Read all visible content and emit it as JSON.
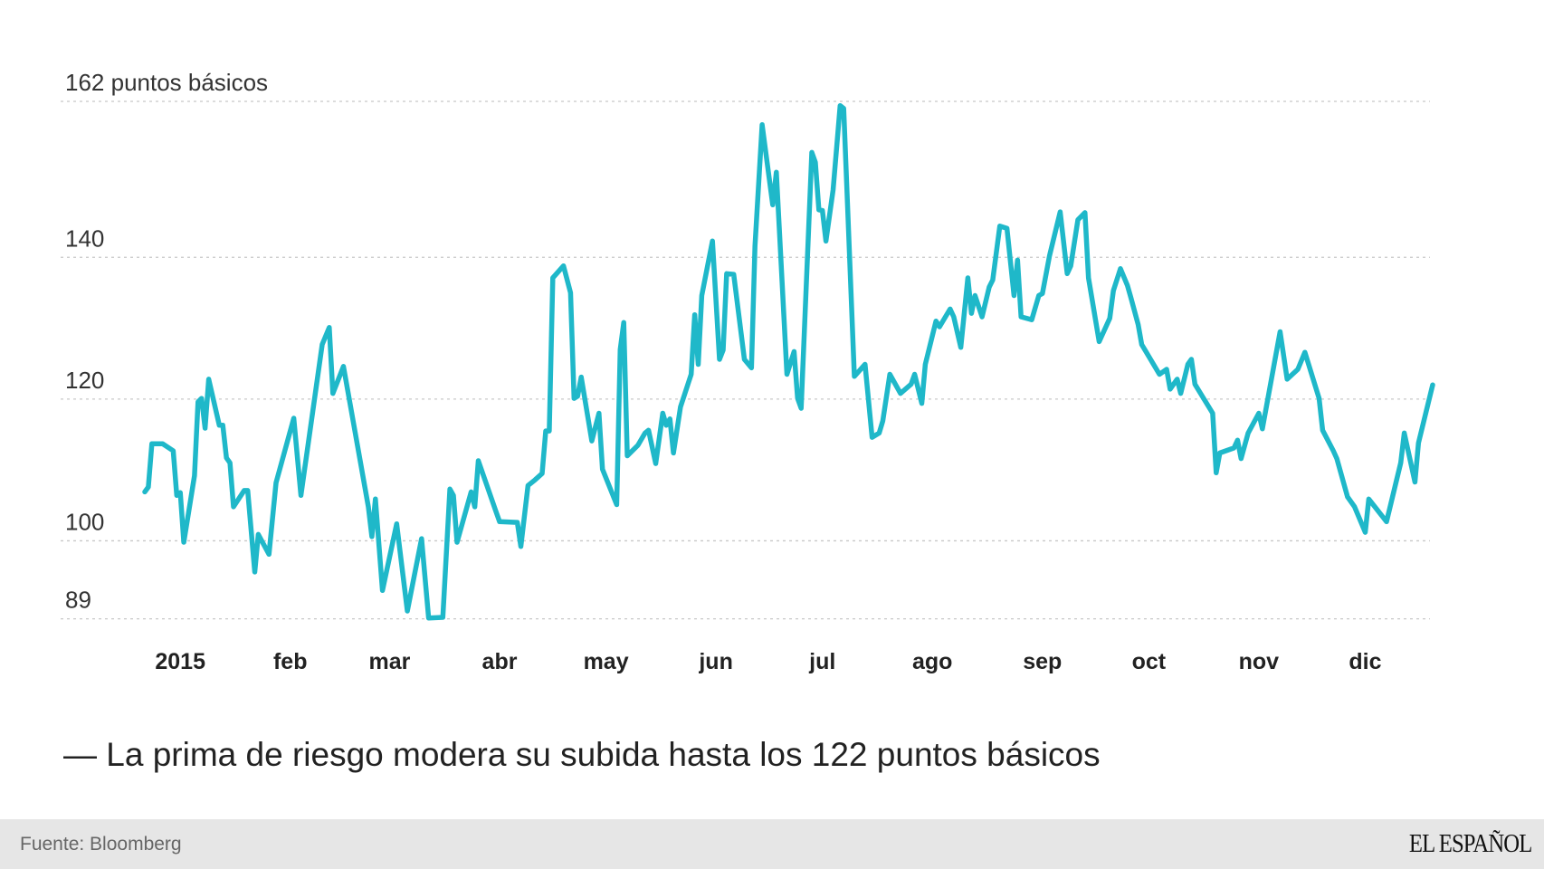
{
  "chart_data": {
    "type": "line",
    "title": "La prima de riesgo modera su subida hasta los 122 puntos básicos",
    "title_prefix": "—",
    "ylabel_unit": "puntos básicos",
    "ylim": [
      89,
      162
    ],
    "yticks": [
      162,
      140,
      120,
      100,
      89
    ],
    "ytick_labels": [
      "162 puntos básicos",
      "140",
      "120",
      "100",
      "89"
    ],
    "xlim": [
      "2015-01-01",
      "2015-12-31"
    ],
    "xtick_labels": [
      "2015",
      "feb",
      "mar",
      "abr",
      "may",
      "jun",
      "jul",
      "ago",
      "sep",
      "oct",
      "nov",
      "dic"
    ],
    "grid": "horizontal dotted",
    "line_color": "#1fb8c9",
    "series": [
      {
        "points": [
          [
            "2015-01-02",
            106.9
          ],
          [
            "2015-01-03",
            107.6
          ],
          [
            "2015-01-04",
            113.7
          ],
          [
            "2015-01-07",
            113.7
          ],
          [
            "2015-01-10",
            112.7
          ],
          [
            "2015-01-11",
            106.4
          ],
          [
            "2015-01-12",
            106.8
          ],
          [
            "2015-01-13",
            99.8
          ],
          [
            "2015-01-16",
            109.2
          ],
          [
            "2015-01-17",
            119.6
          ],
          [
            "2015-01-18",
            120.1
          ],
          [
            "2015-01-19",
            115.9
          ],
          [
            "2015-01-20",
            122.8
          ],
          [
            "2015-01-23",
            116.3
          ],
          [
            "2015-01-24",
            116.3
          ],
          [
            "2015-01-25",
            111.7
          ],
          [
            "2015-01-26",
            111.0
          ],
          [
            "2015-01-27",
            104.8
          ],
          [
            "2015-01-30",
            107.1
          ],
          [
            "2015-01-31",
            107.1
          ],
          [
            "2015-02-02",
            95.6
          ],
          [
            "2015-02-03",
            100.9
          ],
          [
            "2015-02-06",
            98.1
          ],
          [
            "2015-02-08",
            108.2
          ],
          [
            "2015-02-13",
            117.3
          ],
          [
            "2015-02-15",
            106.4
          ],
          [
            "2015-02-21",
            127.7
          ],
          [
            "2015-02-23",
            130.1
          ],
          [
            "2015-02-24",
            120.8
          ],
          [
            "2015-02-27",
            124.6
          ],
          [
            "2015-03-06",
            104.8
          ],
          [
            "2015-03-07",
            100.6
          ],
          [
            "2015-03-08",
            105.9
          ],
          [
            "2015-03-10",
            93.0
          ],
          [
            "2015-03-14",
            102.4
          ],
          [
            "2015-03-17",
            90.1
          ],
          [
            "2015-03-21",
            100.3
          ],
          [
            "2015-03-23",
            89.1
          ],
          [
            "2015-03-27",
            89.2
          ],
          [
            "2015-03-29",
            107.3
          ],
          [
            "2015-03-30",
            106.4
          ],
          [
            "2015-03-31",
            99.8
          ],
          [
            "2015-04-04",
            106.9
          ],
          [
            "2015-04-05",
            104.8
          ],
          [
            "2015-04-06",
            111.3
          ],
          [
            "2015-04-11",
            104.1
          ],
          [
            "2015-04-12",
            102.7
          ],
          [
            "2015-04-17",
            102.6
          ],
          [
            "2015-04-18",
            99.2
          ],
          [
            "2015-04-20",
            107.8
          ],
          [
            "2015-04-22",
            108.6
          ],
          [
            "2015-04-24",
            109.5
          ],
          [
            "2015-04-25",
            115.5
          ],
          [
            "2015-04-26",
            115.5
          ],
          [
            "2015-04-27",
            137.1
          ],
          [
            "2015-04-30",
            138.8
          ],
          [
            "2015-05-02",
            135.0
          ],
          [
            "2015-05-03",
            120.1
          ],
          [
            "2015-05-04",
            120.4
          ],
          [
            "2015-05-05",
            123.1
          ],
          [
            "2015-05-08",
            114.1
          ],
          [
            "2015-05-10",
            118.0
          ],
          [
            "2015-05-11",
            110.1
          ],
          [
            "2015-05-15",
            105.1
          ],
          [
            "2015-05-16",
            127.0
          ],
          [
            "2015-05-17",
            130.8
          ],
          [
            "2015-05-18",
            112.0
          ],
          [
            "2015-05-21",
            113.5
          ],
          [
            "2015-05-23",
            115.2
          ],
          [
            "2015-05-24",
            115.6
          ],
          [
            "2015-05-26",
            110.9
          ],
          [
            "2015-05-28",
            118.0
          ],
          [
            "2015-05-29",
            116.3
          ],
          [
            "2015-05-30",
            117.2
          ],
          [
            "2015-05-31",
            112.4
          ],
          [
            "2015-06-02",
            118.9
          ],
          [
            "2015-06-05",
            123.5
          ],
          [
            "2015-06-06",
            131.9
          ],
          [
            "2015-06-07",
            124.9
          ],
          [
            "2015-06-08",
            134.6
          ],
          [
            "2015-06-11",
            142.3
          ],
          [
            "2015-06-13",
            125.6
          ],
          [
            "2015-06-14",
            126.9
          ],
          [
            "2015-06-15",
            137.7
          ],
          [
            "2015-06-17",
            137.6
          ],
          [
            "2015-06-20",
            125.6
          ],
          [
            "2015-06-22",
            124.4
          ],
          [
            "2015-06-23",
            141.6
          ],
          [
            "2015-06-25",
            158.7
          ],
          [
            "2015-06-28",
            147.4
          ],
          [
            "2015-06-29",
            152.0
          ],
          [
            "2015-07-02",
            123.5
          ],
          [
            "2015-07-04",
            126.7
          ],
          [
            "2015-07-05",
            120.1
          ],
          [
            "2015-07-06",
            118.7
          ],
          [
            "2015-07-09",
            154.8
          ],
          [
            "2015-07-10",
            153.4
          ],
          [
            "2015-07-11",
            146.7
          ],
          [
            "2015-07-12",
            146.6
          ],
          [
            "2015-07-13",
            142.3
          ],
          [
            "2015-07-15",
            149.5
          ],
          [
            "2015-07-17",
            161.4
          ],
          [
            "2015-07-18",
            161.0
          ],
          [
            "2015-07-21",
            123.2
          ],
          [
            "2015-07-24",
            124.9
          ],
          [
            "2015-07-26",
            114.6
          ],
          [
            "2015-07-28",
            115.2
          ],
          [
            "2015-07-29",
            116.9
          ],
          [
            "2015-07-31",
            123.5
          ],
          [
            "2015-08-03",
            120.8
          ],
          [
            "2015-08-06",
            122.1
          ],
          [
            "2015-08-07",
            123.5
          ],
          [
            "2015-08-09",
            119.4
          ],
          [
            "2015-08-10",
            124.9
          ],
          [
            "2015-08-13",
            131.0
          ],
          [
            "2015-08-14",
            130.2
          ],
          [
            "2015-08-17",
            132.7
          ],
          [
            "2015-08-18",
            131.6
          ],
          [
            "2015-08-20",
            127.3
          ],
          [
            "2015-08-22",
            137.1
          ],
          [
            "2015-08-23",
            132.1
          ],
          [
            "2015-08-24",
            134.6
          ],
          [
            "2015-08-26",
            131.6
          ],
          [
            "2015-08-28",
            135.8
          ],
          [
            "2015-08-29",
            136.8
          ],
          [
            "2015-08-31",
            144.4
          ],
          [
            "2015-09-02",
            144.1
          ],
          [
            "2015-09-04",
            134.6
          ],
          [
            "2015-09-05",
            139.6
          ],
          [
            "2015-09-06",
            131.6
          ],
          [
            "2015-09-09",
            131.2
          ],
          [
            "2015-09-11",
            134.6
          ],
          [
            "2015-09-12",
            134.9
          ],
          [
            "2015-09-14",
            140.2
          ],
          [
            "2015-09-17",
            146.4
          ],
          [
            "2015-09-19",
            137.7
          ],
          [
            "2015-09-20",
            138.8
          ],
          [
            "2015-09-22",
            145.3
          ],
          [
            "2015-09-24",
            146.3
          ],
          [
            "2015-09-25",
            137.1
          ],
          [
            "2015-09-28",
            128.1
          ],
          [
            "2015-10-01",
            131.4
          ],
          [
            "2015-10-02",
            135.3
          ],
          [
            "2015-10-04",
            138.4
          ],
          [
            "2015-10-06",
            136.0
          ],
          [
            "2015-10-07",
            134.2
          ],
          [
            "2015-10-09",
            130.5
          ],
          [
            "2015-10-10",
            127.7
          ],
          [
            "2015-10-15",
            123.5
          ],
          [
            "2015-10-17",
            124.2
          ],
          [
            "2015-10-18",
            121.4
          ],
          [
            "2015-10-20",
            122.8
          ],
          [
            "2015-10-21",
            120.8
          ],
          [
            "2015-10-23",
            124.9
          ],
          [
            "2015-10-24",
            125.6
          ],
          [
            "2015-10-25",
            122.1
          ],
          [
            "2015-10-30",
            118.0
          ],
          [
            "2015-10-31",
            109.6
          ],
          [
            "2015-11-01",
            112.4
          ],
          [
            "2015-11-05",
            113.1
          ],
          [
            "2015-11-06",
            114.2
          ],
          [
            "2015-11-07",
            111.6
          ],
          [
            "2015-11-09",
            115.2
          ],
          [
            "2015-11-12",
            118.0
          ],
          [
            "2015-11-13",
            115.8
          ],
          [
            "2015-11-18",
            129.5
          ],
          [
            "2015-11-20",
            122.8
          ],
          [
            "2015-11-23",
            124.2
          ],
          [
            "2015-11-25",
            126.6
          ],
          [
            "2015-11-29",
            120.1
          ],
          [
            "2015-11-30",
            115.6
          ],
          [
            "2015-12-03",
            112.7
          ],
          [
            "2015-12-04",
            111.6
          ],
          [
            "2015-12-07",
            106.2
          ],
          [
            "2015-12-09",
            104.8
          ],
          [
            "2015-12-12",
            101.2
          ],
          [
            "2015-12-13",
            105.9
          ],
          [
            "2015-12-18",
            102.7
          ],
          [
            "2015-12-22",
            111.0
          ],
          [
            "2015-12-23",
            115.2
          ],
          [
            "2015-12-26",
            108.3
          ],
          [
            "2015-12-27",
            113.8
          ],
          [
            "2015-12-31",
            122.0
          ]
        ]
      }
    ]
  },
  "footer": {
    "source": "Fuente: Bloomberg",
    "logo": "EL ESPAÑOL"
  }
}
